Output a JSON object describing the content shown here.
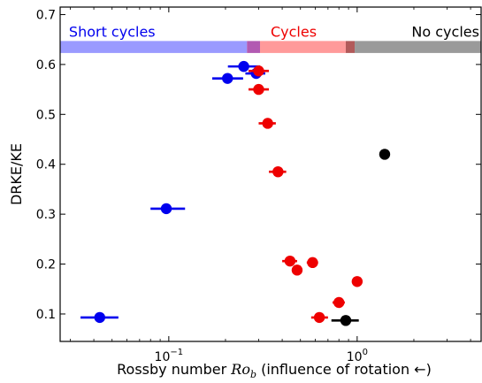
{
  "chart_data": {
    "type": "scatter",
    "xscale": "log",
    "xlim": [
      0.0265,
      4.55
    ],
    "ylim": [
      0.045,
      0.715
    ],
    "xlabel_prefix": "Rossby number ",
    "xlabel_symbol": "Ro",
    "xlabel_subscript": "b",
    "xlabel_suffix": " (influence of rotation ←)",
    "ylabel": "DRKE/KE",
    "xticks": [
      {
        "value": 0.1,
        "base": "10",
        "exp": "−1"
      },
      {
        "value": 1,
        "base": "10",
        "exp": "0"
      }
    ],
    "yticks": [
      {
        "value": 0.1,
        "label": "0.1"
      },
      {
        "value": 0.2,
        "label": "0.2"
      },
      {
        "value": 0.3,
        "label": "0.3"
      },
      {
        "value": 0.4,
        "label": "0.4"
      },
      {
        "value": 0.5,
        "label": "0.5"
      },
      {
        "value": 0.6,
        "label": "0.6"
      },
      {
        "value": 0.7,
        "label": "0.7"
      }
    ],
    "regime_band": {
      "y_top": 0.647,
      "y_bottom": 0.623,
      "segments": [
        {
          "x0": 0.0265,
          "x1": 0.26,
          "color": "#9a9aff"
        },
        {
          "x0": 0.26,
          "x1": 0.305,
          "color": "#b25ab2"
        },
        {
          "x0": 0.305,
          "x1": 0.87,
          "color": "#ff9a9a"
        },
        {
          "x0": 0.87,
          "x1": 0.97,
          "color": "#b25a5a"
        },
        {
          "x0": 0.97,
          "x1": 4.55,
          "color": "#9a9a9a"
        }
      ]
    },
    "regimes": [
      {
        "label": "Short cycles",
        "color": "#0000ee",
        "x": 0.0295,
        "anchor": "start"
      },
      {
        "label": "Cycles",
        "color": "#ee0000",
        "x": 0.46,
        "anchor": "middle"
      },
      {
        "label": "No cycles",
        "color": "#000000",
        "x": 4.45,
        "anchor": "end"
      }
    ],
    "series": [
      {
        "color": "#0000ee",
        "points": [
          {
            "x": 0.043,
            "y": 0.093,
            "xerr": [
              0.034,
              0.054
            ]
          },
          {
            "x": 0.097,
            "y": 0.311,
            "xerr": [
              0.08,
              0.122
            ]
          },
          {
            "x": 0.205,
            "y": 0.572,
            "xerr": [
              0.17,
              0.248
            ]
          },
          {
            "x": 0.25,
            "y": 0.596,
            "xerr": [
              0.206,
              0.305
            ]
          },
          {
            "x": 0.291,
            "y": 0.582,
            "xerr": [
              0.255,
              0.325
            ]
          }
        ]
      },
      {
        "color": "#ee0000",
        "points": [
          {
            "x": 0.3,
            "y": 0.587,
            "xerr": [
              0.265,
              0.34
            ]
          },
          {
            "x": 0.3,
            "y": 0.55,
            "xerr": [
              0.265,
              0.34
            ]
          },
          {
            "x": 0.335,
            "y": 0.482,
            "xerr": [
              0.3,
              0.37
            ]
          },
          {
            "x": 0.38,
            "y": 0.385,
            "xerr": [
              0.34,
              0.42
            ]
          },
          {
            "x": 0.44,
            "y": 0.206,
            "xerr": [
              0.4,
              0.48
            ]
          },
          {
            "x": 0.48,
            "y": 0.188,
            "xerr": [
              0.45,
              0.51
            ]
          },
          {
            "x": 0.58,
            "y": 0.203,
            "xerr": [
              0.54,
              0.62
            ]
          },
          {
            "x": 0.63,
            "y": 0.093,
            "xerr": [
              0.57,
              0.7
            ]
          },
          {
            "x": 0.8,
            "y": 0.123,
            "xerr": [
              0.74,
              0.86
            ]
          },
          {
            "x": 1.0,
            "y": 0.165,
            "xerr": [
              0.96,
              1.04
            ]
          }
        ]
      },
      {
        "color": "#000000",
        "points": [
          {
            "x": 0.87,
            "y": 0.087,
            "xerr": [
              0.73,
              1.02
            ]
          },
          {
            "x": 1.4,
            "y": 0.42,
            "xerr": [
              1.34,
              1.46
            ]
          }
        ]
      }
    ]
  }
}
